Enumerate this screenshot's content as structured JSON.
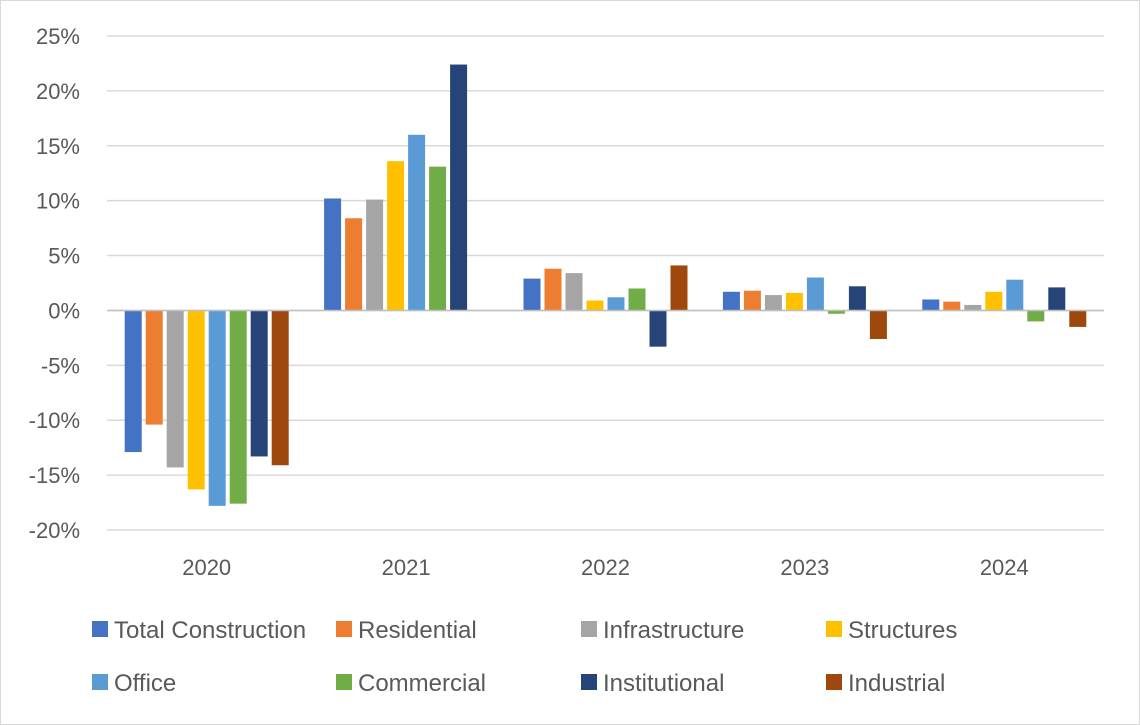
{
  "chart_data": {
    "type": "bar",
    "title": "",
    "xlabel": "",
    "ylabel": "",
    "categories": [
      "2020",
      "2021",
      "2022",
      "2023",
      "2024"
    ],
    "ylim": [
      -20,
      25
    ],
    "ytick_values": [
      25,
      20,
      15,
      10,
      5,
      0,
      -5,
      -10,
      -15,
      -20
    ],
    "ytick_labels": [
      "25%",
      "20%",
      "15%",
      "10%",
      "5%",
      "0%",
      "-5%",
      "-10%",
      "-15%",
      "-20%"
    ],
    "grid": true,
    "legend_position": "bottom",
    "series": [
      {
        "name": "Total Construction",
        "color": "#4472C4",
        "values": [
          -12.9,
          10.2,
          2.9,
          1.7,
          1.0
        ]
      },
      {
        "name": "Residential",
        "color": "#ED7D31",
        "values": [
          -10.4,
          8.4,
          3.8,
          1.8,
          0.8
        ]
      },
      {
        "name": "Infrastructure",
        "color": "#A5A5A5",
        "values": [
          -14.3,
          10.1,
          3.4,
          1.4,
          0.5
        ]
      },
      {
        "name": "Structures",
        "color": "#FFC000",
        "values": [
          -16.3,
          13.6,
          0.9,
          1.6,
          1.7
        ]
      },
      {
        "name": "Office",
        "color": "#5B9BD5",
        "values": [
          -17.8,
          16.0,
          1.2,
          3.0,
          2.8
        ]
      },
      {
        "name": "Commercial",
        "color": "#70AD47",
        "values": [
          -17.6,
          13.1,
          2.0,
          -0.3,
          -1.0
        ]
      },
      {
        "name": "Institutional",
        "color": "#264478",
        "values": [
          -13.3,
          22.4,
          -3.3,
          2.2,
          2.1
        ]
      },
      {
        "name": "Industrial",
        "color": "#9E480E",
        "values": [
          -14.1,
          0,
          4.1,
          -2.6,
          -1.5
        ]
      }
    ]
  }
}
